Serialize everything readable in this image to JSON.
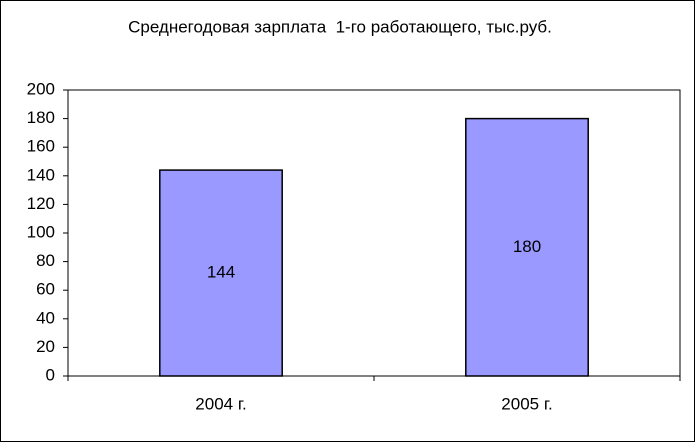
{
  "chart_data": {
    "type": "bar",
    "title": "Среднегодовая зарплата  1-го работающего, тыс.руб.",
    "categories": [
      "2004 г.",
      "2005 г."
    ],
    "values": [
      144,
      180
    ],
    "color": "#9999ff",
    "ylim": [
      0,
      200
    ],
    "yticks": [
      0,
      20,
      40,
      60,
      80,
      100,
      120,
      140,
      160,
      180,
      200
    ],
    "grid": false
  }
}
